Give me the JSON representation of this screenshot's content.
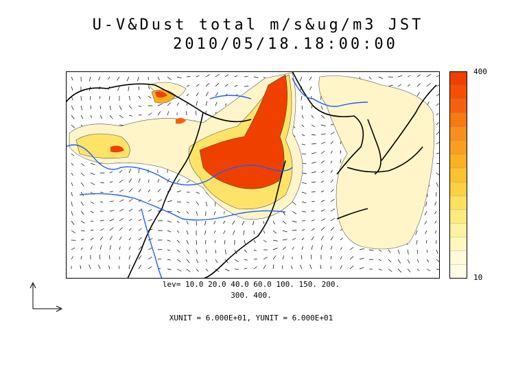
{
  "title": {
    "line1": "U-V&Dust total m/s&ug/m3 JST",
    "line2": "2010/05/18.18:00:00"
  },
  "colorbar": {
    "max_label": "400",
    "min_label": "10",
    "colors": [
      "#f04000",
      "#f45000",
      "#f56010",
      "#f77a10",
      "#f88e20",
      "#fa9e20",
      "#fbb020",
      "#fdc230",
      "#fdd040",
      "#fde060",
      "#feeb80",
      "#fef3a0",
      "#fff7c0",
      "#fffad8",
      "#fffce6"
    ]
  },
  "contour_levels": {
    "line1": "lev= 10.0 20.0 40.0 60.0 100. 150. 200.",
    "line2": "300. 400."
  },
  "units": "XUNIT = 6.000E+01, YUNIT = 6.000E+01",
  "map_colors": {
    "coastline": "#000000",
    "rivers": "#1e5cff",
    "dust_low": "#fff5c8",
    "dust_mid": "#fde468",
    "dust_high": "#f04000"
  }
}
